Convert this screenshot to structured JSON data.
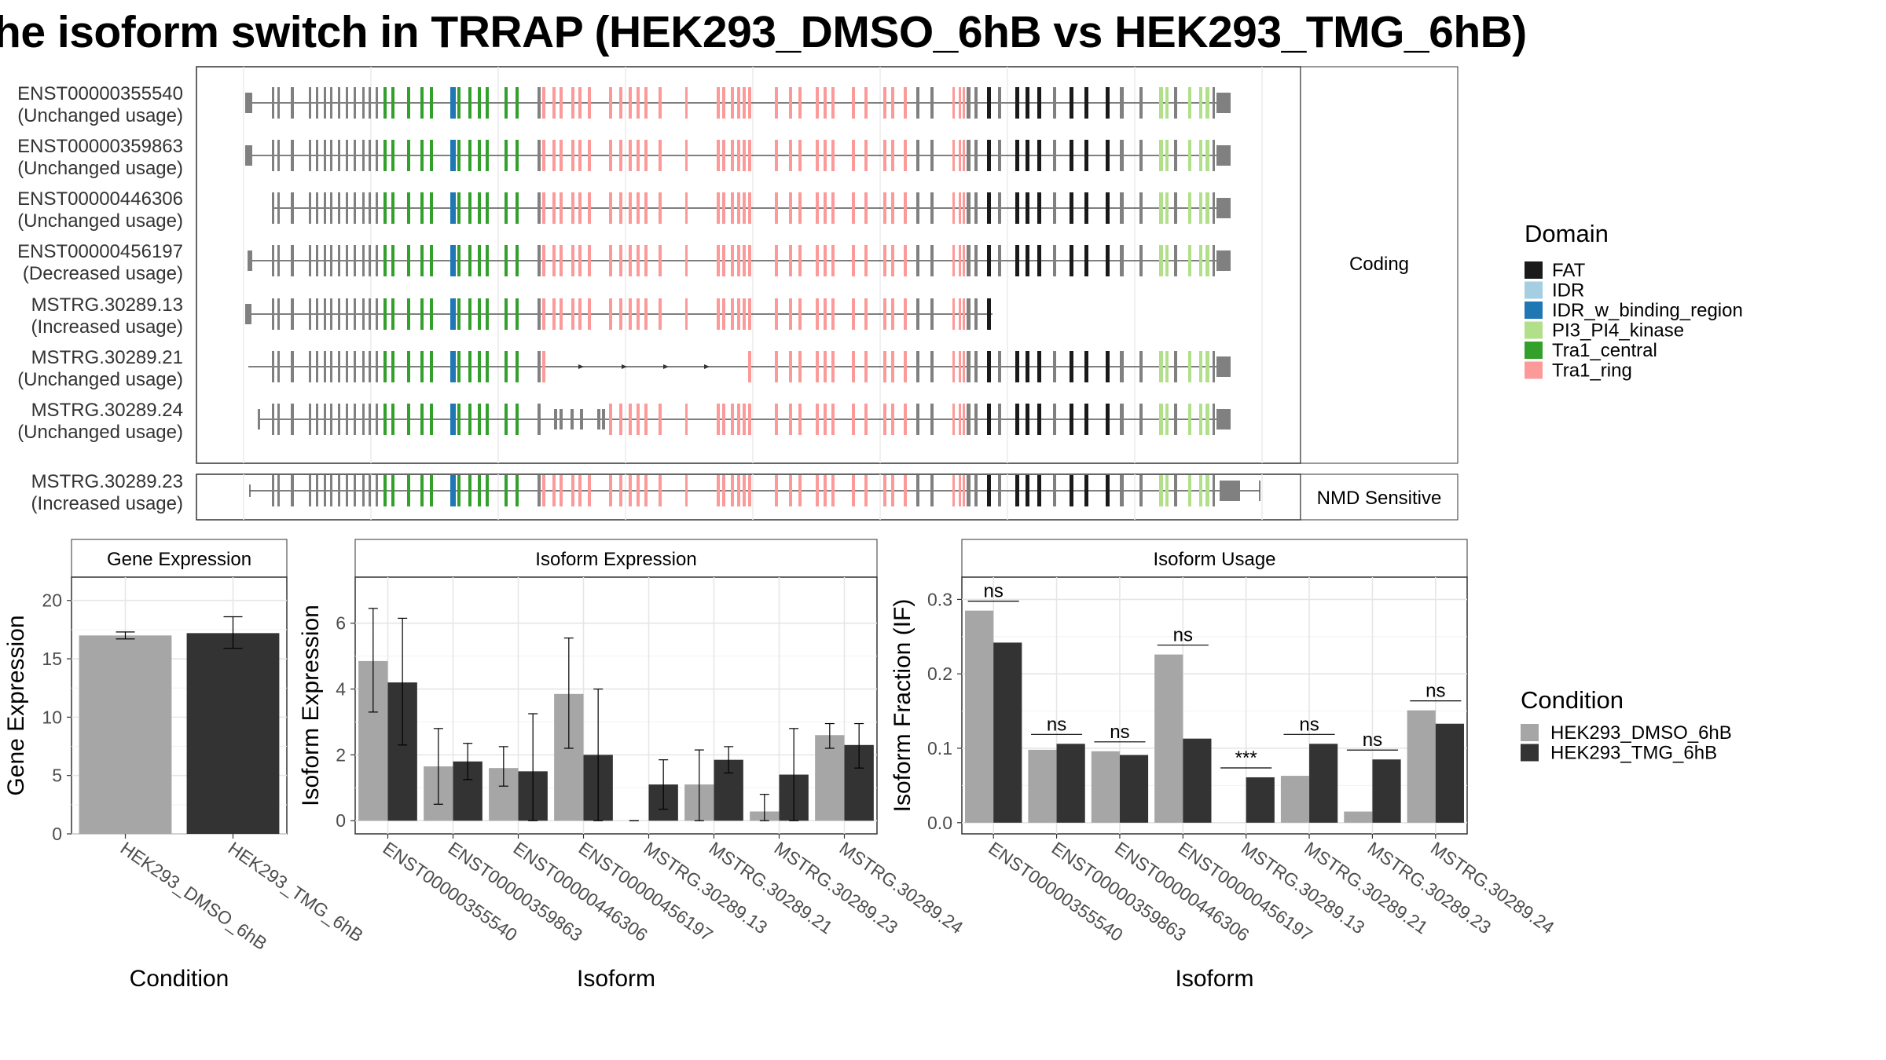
{
  "title": "he isoform switch in TRRAP (HEK293_DMSO_6hB vs HEK293_TMG_6hB)",
  "colors": {
    "FAT": "#1a1a1a",
    "IDR": "#a6cee3",
    "IDR_w_binding_region": "#1f78b4",
    "PI3_PI4_kinase": "#b2df8a",
    "Tra1_central": "#33a02c",
    "Tra1_ring": "#fb9a99",
    "exon_plain": "#808080",
    "dmso": "#a6a6a6",
    "tmg": "#333333"
  },
  "chart_data": [
    {
      "type": "gene-structure",
      "facets": [
        "Coding",
        "NMD Sensitive"
      ],
      "isoforms": [
        {
          "id": "ENST00000355540",
          "status": "(Unchanged usage)",
          "facet": "Coding"
        },
        {
          "id": "ENST00000359863",
          "status": "(Unchanged usage)",
          "facet": "Coding"
        },
        {
          "id": "ENST00000446306",
          "status": "(Unchanged usage)",
          "facet": "Coding"
        },
        {
          "id": "ENST00000456197",
          "status": "(Decreased usage)",
          "facet": "Coding"
        },
        {
          "id": "MSTRG.30289.13",
          "status": "(Increased usage)",
          "facet": "Coding"
        },
        {
          "id": "MSTRG.30289.21",
          "status": "(Unchanged usage)",
          "facet": "Coding"
        },
        {
          "id": "MSTRG.30289.24",
          "status": "(Unchanged usage)",
          "facet": "Coding"
        },
        {
          "id": "MSTRG.30289.23",
          "status": "(Increased usage)",
          "facet": "NMD Sensitive"
        }
      ],
      "legend": {
        "title": "Domain",
        "entries": [
          "FAT",
          "IDR",
          "IDR_w_binding_region",
          "PI3_PI4_kinase",
          "Tra1_central",
          "Tra1_ring"
        ]
      }
    },
    {
      "type": "bar",
      "title": "Gene Expression",
      "xlabel": "Condition",
      "ylabel": "Gene Expression",
      "categories": [
        "HEK293_DMSO_6hB",
        "HEK293_TMG_6hB"
      ],
      "values": [
        17.0,
        17.2
      ],
      "errors": [
        [
          16.7,
          17.3
        ],
        [
          15.9,
          18.6
        ]
      ],
      "yticks": [
        0,
        5,
        10,
        15,
        20
      ],
      "ylim": [
        0,
        22
      ]
    },
    {
      "type": "bar",
      "title": "Isoform Expression",
      "xlabel": "Isoform",
      "ylabel": "Isoform Expression",
      "categories": [
        "ENST00000355540",
        "ENST00000359863",
        "ENST00000446306",
        "ENST00000456197",
        "MSTRG.30289.13",
        "MSTRG.30289.21",
        "MSTRG.30289.23",
        "MSTRG.30289.24"
      ],
      "series": [
        {
          "name": "HEK293_DMSO_6hB",
          "values": [
            4.85,
            1.65,
            1.6,
            3.85,
            0.0,
            1.1,
            0.28,
            2.6
          ],
          "errors": [
            [
              3.3,
              6.45
            ],
            [
              0.5,
              2.8
            ],
            [
              1.05,
              2.25
            ],
            [
              2.2,
              5.55
            ],
            [
              0.0,
              0.0
            ],
            [
              0.0,
              2.15
            ],
            [
              0.0,
              0.8
            ],
            [
              2.2,
              2.95
            ]
          ]
        },
        {
          "name": "HEK293_TMG_6hB",
          "values": [
            4.2,
            1.8,
            1.5,
            2.0,
            1.1,
            1.85,
            1.4,
            2.3
          ],
          "errors": [
            [
              2.3,
              6.15
            ],
            [
              1.25,
              2.35
            ],
            [
              0.0,
              3.25
            ],
            [
              0.0,
              4.0
            ],
            [
              0.35,
              1.85
            ],
            [
              1.45,
              2.25
            ],
            [
              0.0,
              2.8
            ],
            [
              1.6,
              2.95
            ]
          ]
        }
      ],
      "yticks": [
        0,
        2,
        4,
        6
      ],
      "ylim": [
        -0.4,
        7.4
      ]
    },
    {
      "type": "bar",
      "title": "Isoform Usage",
      "xlabel": "Isoform",
      "ylabel": "Isoform Fraction (IF)",
      "categories": [
        "ENST00000355540",
        "ENST00000359863",
        "ENST00000446306",
        "ENST00000456197",
        "MSTRG.30289.13",
        "MSTRG.30289.21",
        "MSTRG.30289.23",
        "MSTRG.30289.24"
      ],
      "series": [
        {
          "name": "HEK293_DMSO_6hB",
          "values": [
            0.285,
            0.098,
            0.096,
            0.226,
            0.0,
            0.063,
            0.015,
            0.151
          ]
        },
        {
          "name": "HEK293_TMG_6hB",
          "values": [
            0.242,
            0.106,
            0.091,
            0.113,
            0.061,
            0.106,
            0.085,
            0.133
          ]
        }
      ],
      "significance": [
        "ns",
        "ns",
        "ns",
        "ns",
        "***",
        "ns",
        "ns",
        "ns"
      ],
      "yticks": [
        0.0,
        0.1,
        0.2,
        0.3
      ],
      "ylim": [
        -0.015,
        0.33
      ]
    }
  ],
  "condition_legend": {
    "title": "Condition",
    "entries": [
      "HEK293_DMSO_6hB",
      "HEK293_TMG_6hB"
    ]
  }
}
